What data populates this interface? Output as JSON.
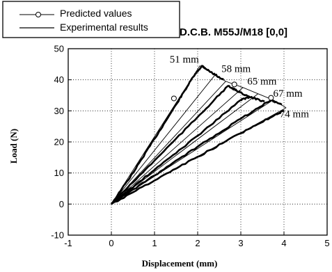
{
  "chart_data": {
    "type": "line",
    "title": "D.C.B. M55J/M18 [0,0]",
    "xlabel": "Displacement (mm)",
    "ylabel": "Load (N)",
    "xlim": [
      -1,
      5
    ],
    "ylim": [
      -10,
      50
    ],
    "x_ticks": [
      "-1",
      "0",
      "1",
      "2",
      "3",
      "4",
      "5"
    ],
    "y_ticks": [
      "-10",
      "0",
      "10",
      "20",
      "30",
      "40",
      "50"
    ],
    "grid": true,
    "legend_position": "top-left",
    "series": [
      {
        "name": "Predicted values",
        "marker": "circle",
        "points": [
          [
            0,
            0
          ],
          [
            2.05,
            44.5
          ],
          [
            2.4,
            41.5
          ],
          [
            2.65,
            39.5
          ],
          [
            3.05,
            37.5
          ],
          [
            3.4,
            35.5
          ],
          [
            3.75,
            33.5
          ],
          [
            4.05,
            31.0
          ]
        ]
      },
      {
        "name": "Experimental results",
        "marker": "none",
        "curves": [
          [
            [
              0,
              0
            ],
            [
              0.5,
              10.0
            ],
            [
              1.0,
              21.0
            ],
            [
              1.5,
              32.0
            ],
            [
              1.9,
              41.0
            ],
            [
              2.1,
              44.5
            ],
            [
              2.3,
              42.5
            ],
            [
              2.6,
              40.0
            ]
          ],
          [
            [
              0,
              0
            ],
            [
              1.0,
              14.0
            ],
            [
              2.0,
              28.0
            ],
            [
              2.7,
              38.0
            ],
            [
              2.9,
              36.5
            ],
            [
              3.2,
              34.5
            ]
          ],
          [
            [
              0,
              0
            ],
            [
              1.0,
              11.0
            ],
            [
              2.0,
              22.0
            ],
            [
              3.0,
              33.5
            ],
            [
              3.2,
              34.5
            ],
            [
              3.55,
              33.0
            ]
          ],
          [
            [
              0,
              0
            ],
            [
              1.0,
              9.2
            ],
            [
              2.0,
              18.5
            ],
            [
              3.0,
              27.5
            ],
            [
              3.7,
              33.5
            ],
            [
              3.95,
              32.0
            ]
          ],
          [
            [
              0,
              0
            ],
            [
              1.0,
              7.6
            ],
            [
              2.0,
              15.2
            ],
            [
              3.0,
              22.8
            ],
            [
              3.8,
              28.8
            ],
            [
              4.0,
              30.0
            ]
          ]
        ]
      }
    ],
    "annotations": [
      {
        "text": "51 mm",
        "x": 1.35,
        "y": 45.5
      },
      {
        "text": "58 mm",
        "x": 2.55,
        "y": 42.5
      },
      {
        "text": "65 mm",
        "x": 3.15,
        "y": 38.5
      },
      {
        "text": "67 mm",
        "x": 3.75,
        "y": 34.5
      },
      {
        "text": "74 mm",
        "x": 3.9,
        "y": 28.0
      }
    ]
  }
}
